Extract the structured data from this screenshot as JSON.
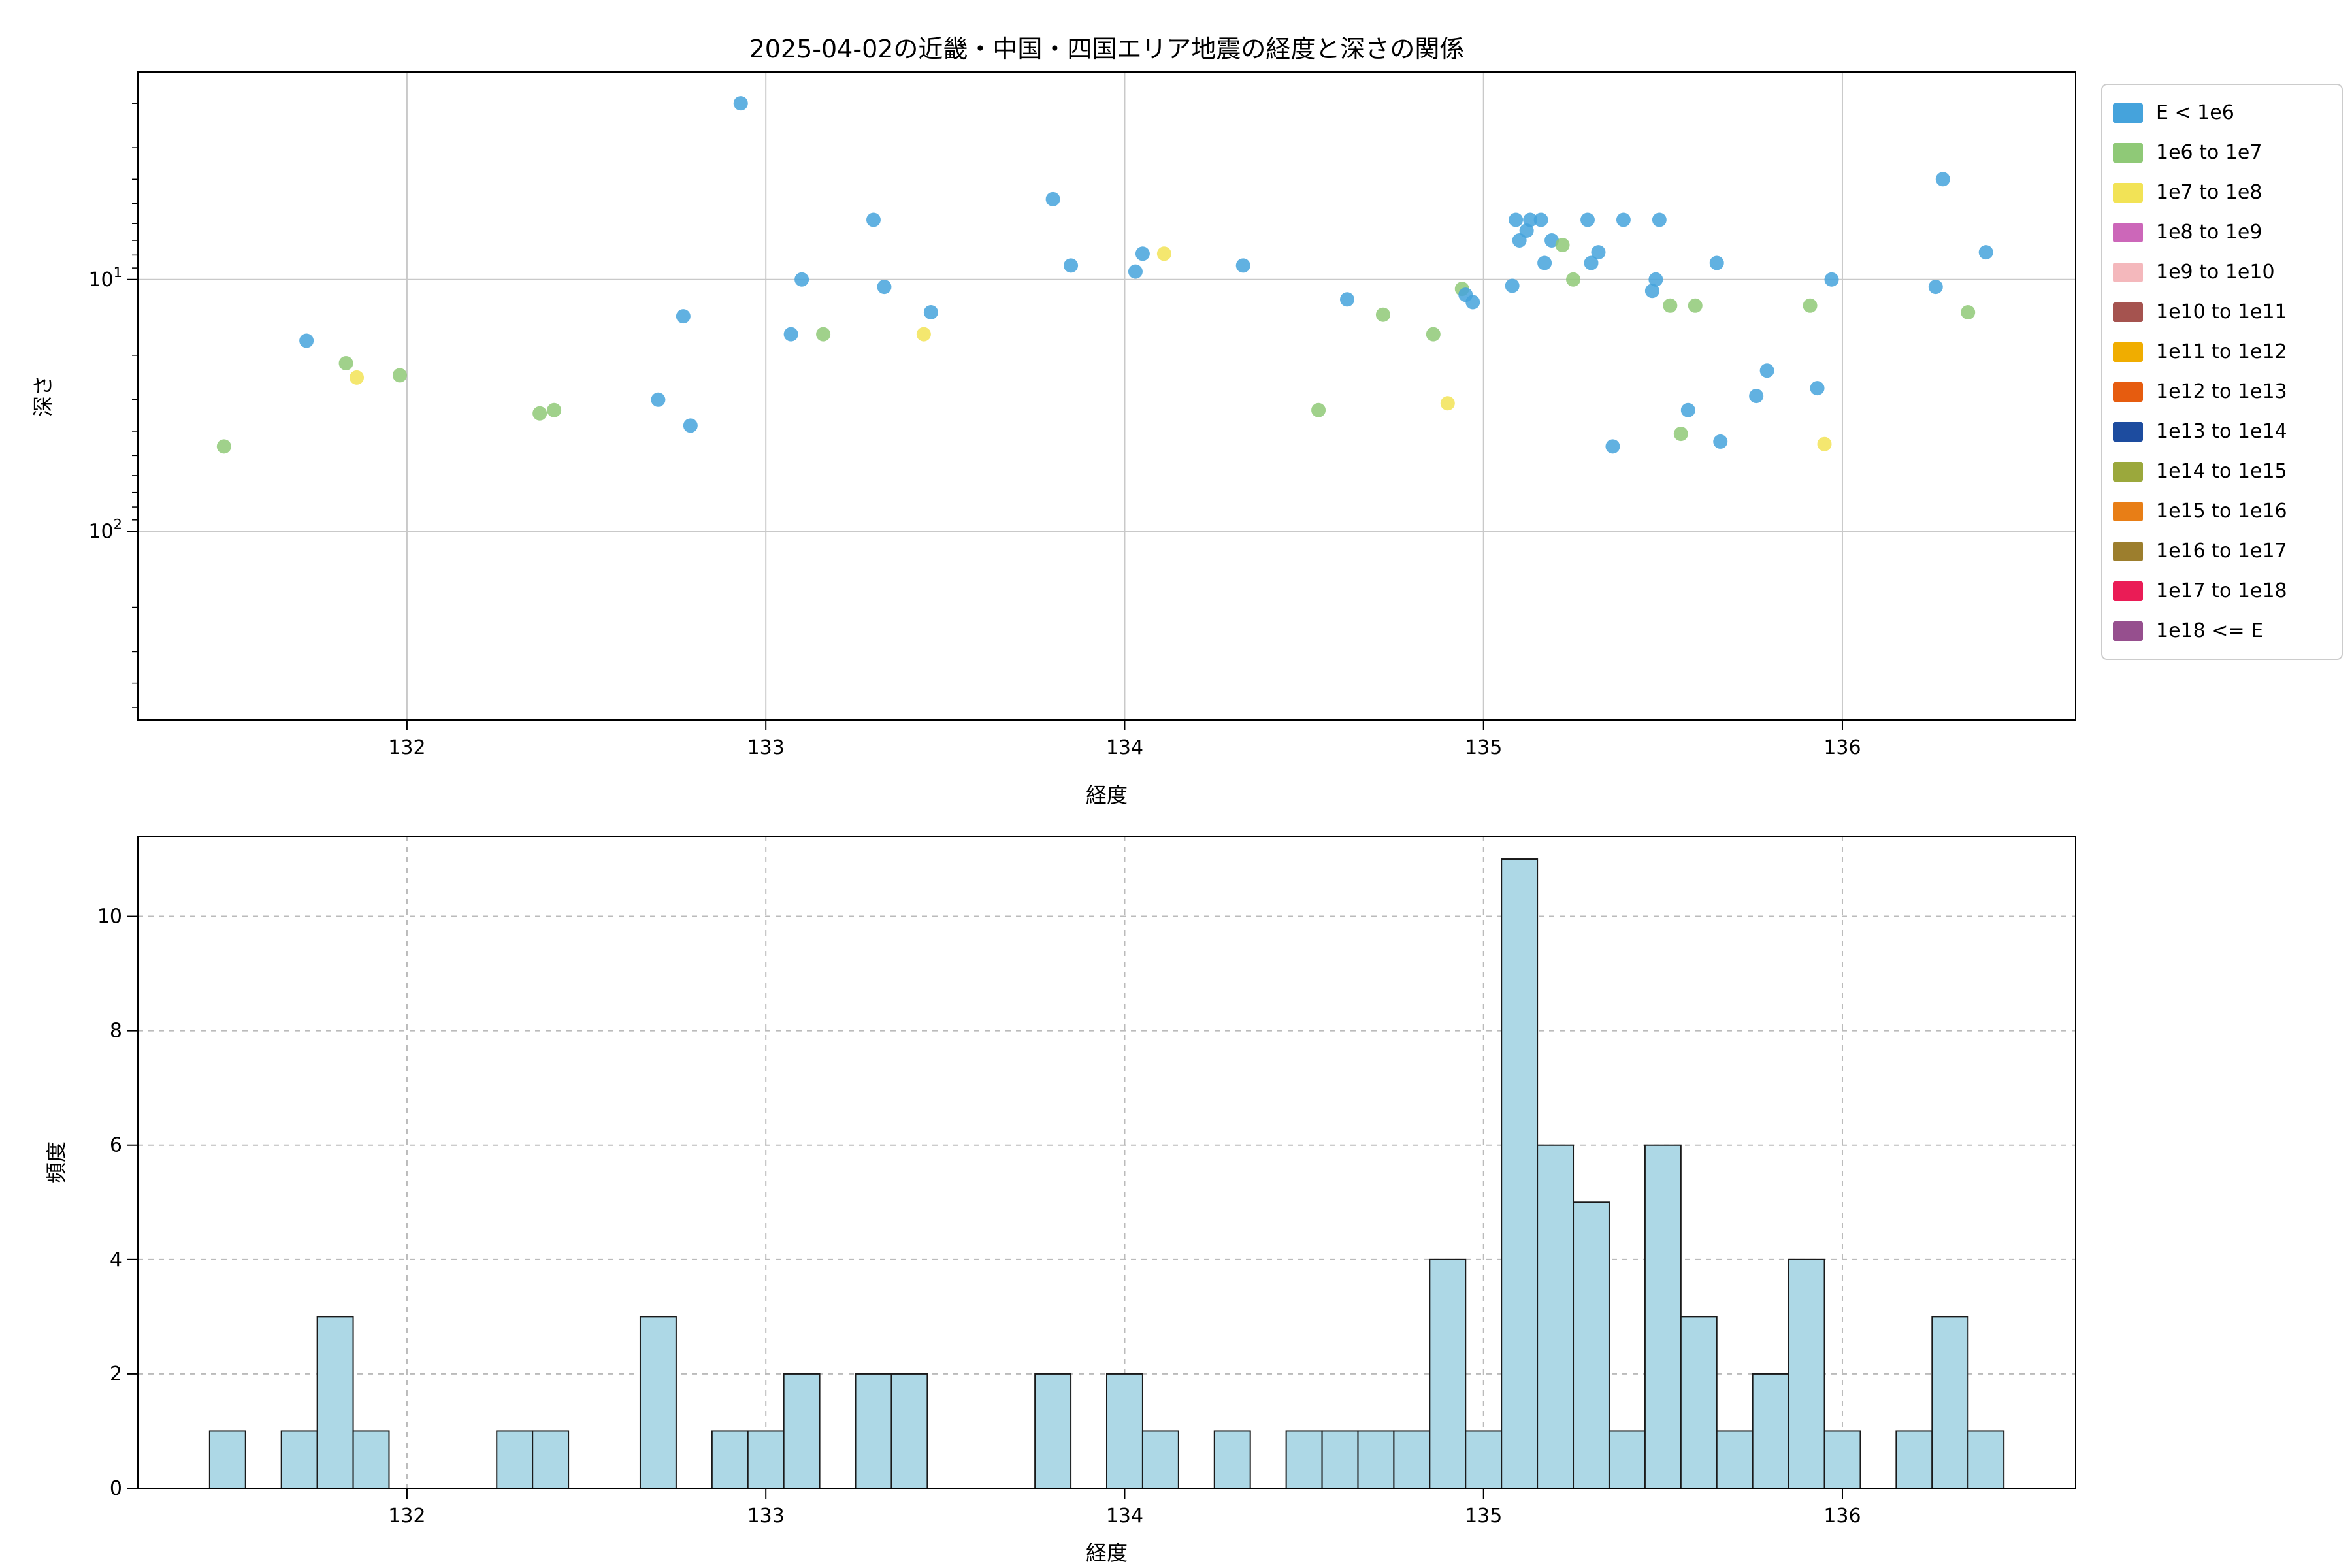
{
  "figure": {
    "title": "2025-04-02の近畿・中国・四国エリア地震の経度と深さの関係",
    "background": "#ffffff"
  },
  "legend": {
    "entries": [
      {
        "label": "E < 1e6",
        "color": "#45A3DC"
      },
      {
        "label": "1e6 to 1e7",
        "color": "#8FC977"
      },
      {
        "label": "1e7 to 1e8",
        "color": "#F2E356"
      },
      {
        "label": "1e8 to 1e9",
        "color": "#CC67B9"
      },
      {
        "label": "1e9 to 1e10",
        "color": "#F4B8BC"
      },
      {
        "label": "1e10 to 1e11",
        "color": "#A5534F"
      },
      {
        "label": "1e11 to 1e12",
        "color": "#F0AD00"
      },
      {
        "label": "1e12 to 1e13",
        "color": "#E65C0F"
      },
      {
        "label": "1e13 to 1e14",
        "color": "#1D4C9F"
      },
      {
        "label": "1e14 to 1e15",
        "color": "#9BA83C"
      },
      {
        "label": "1e15 to 1e16",
        "color": "#E87E16"
      },
      {
        "label": "1e16 to 1e17",
        "color": "#9C7E2D"
      },
      {
        "label": "1e17 to 1e18",
        "color": "#EA1C56"
      },
      {
        "label": "1e18 <= E",
        "color": "#964F8E"
      }
    ]
  },
  "chart_data": [
    {
      "type": "scatter",
      "title": "2025-04-02の近畿・中国・四国エリア地震の経度と深さの関係",
      "xlabel": "経度",
      "ylabel": "深さ",
      "xlim": [
        131.25,
        136.65
      ],
      "x_ticks": [
        132,
        133,
        134,
        135,
        136
      ],
      "yscale": "log",
      "y_inverted": true,
      "y_top": 1.5,
      "y_bottom": 560,
      "y_ticks": [
        10,
        100
      ],
      "grid": "solid",
      "points_format": [
        "longitude",
        "depth_km",
        "legend_bin_index"
      ],
      "points": [
        [
          131.49,
          46.0,
          1
        ],
        [
          131.72,
          17.5,
          0
        ],
        [
          131.83,
          21.5,
          1
        ],
        [
          131.86,
          24.5,
          2
        ],
        [
          131.98,
          24.0,
          1
        ],
        [
          132.37,
          34.0,
          1
        ],
        [
          132.41,
          33.0,
          1
        ],
        [
          132.7,
          30.0,
          0
        ],
        [
          132.77,
          14.0,
          0
        ],
        [
          132.79,
          38.0,
          0
        ],
        [
          132.93,
          2.0,
          0
        ],
        [
          133.07,
          16.5,
          0
        ],
        [
          133.1,
          10.0,
          0
        ],
        [
          133.16,
          16.5,
          1
        ],
        [
          133.3,
          5.8,
          0
        ],
        [
          133.33,
          10.7,
          0
        ],
        [
          133.44,
          16.5,
          2
        ],
        [
          133.46,
          13.5,
          0
        ],
        [
          133.8,
          4.8,
          0
        ],
        [
          133.85,
          8.8,
          0
        ],
        [
          134.03,
          9.3,
          0
        ],
        [
          134.05,
          7.9,
          0
        ],
        [
          134.11,
          7.9,
          2
        ],
        [
          134.33,
          8.8,
          0
        ],
        [
          134.54,
          33.0,
          1
        ],
        [
          134.62,
          12.0,
          0
        ],
        [
          134.72,
          13.8,
          1
        ],
        [
          134.86,
          16.5,
          1
        ],
        [
          134.9,
          31.0,
          2
        ],
        [
          134.94,
          10.9,
          1
        ],
        [
          134.95,
          11.5,
          0
        ],
        [
          134.97,
          12.3,
          0
        ],
        [
          135.08,
          10.6,
          0
        ],
        [
          135.09,
          5.8,
          0
        ],
        [
          135.1,
          7.0,
          0
        ],
        [
          135.12,
          6.4,
          0
        ],
        [
          135.13,
          5.8,
          0
        ],
        [
          135.16,
          5.8,
          0
        ],
        [
          135.17,
          8.6,
          0
        ],
        [
          135.19,
          7.0,
          0
        ],
        [
          135.22,
          7.3,
          1
        ],
        [
          135.25,
          10.0,
          1
        ],
        [
          135.29,
          5.8,
          0
        ],
        [
          135.3,
          8.6,
          0
        ],
        [
          135.32,
          7.8,
          0
        ],
        [
          135.36,
          46.0,
          0
        ],
        [
          135.39,
          5.8,
          0
        ],
        [
          135.47,
          11.1,
          0
        ],
        [
          135.48,
          10.0,
          0
        ],
        [
          135.49,
          5.8,
          0
        ],
        [
          135.52,
          12.7,
          1
        ],
        [
          135.55,
          41.0,
          1
        ],
        [
          135.57,
          33.0,
          0
        ],
        [
          135.59,
          12.7,
          1
        ],
        [
          135.65,
          8.6,
          0
        ],
        [
          135.66,
          44.0,
          0
        ],
        [
          135.76,
          29.0,
          0
        ],
        [
          135.79,
          23.0,
          0
        ],
        [
          135.91,
          12.7,
          1
        ],
        [
          135.93,
          27.0,
          0
        ],
        [
          135.95,
          45.0,
          2
        ],
        [
          135.97,
          10.0,
          0
        ],
        [
          136.26,
          10.7,
          0
        ],
        [
          136.28,
          4.0,
          0
        ],
        [
          136.35,
          13.5,
          1
        ],
        [
          136.4,
          7.8,
          0
        ]
      ]
    },
    {
      "type": "bar",
      "xlabel": "経度",
      "ylabel": "頻度",
      "xlim": [
        131.25,
        136.65
      ],
      "x_ticks": [
        132,
        133,
        134,
        135,
        136
      ],
      "ylim": [
        0,
        11.4
      ],
      "y_ticks": [
        0,
        2,
        4,
        6,
        8,
        10
      ],
      "grid": "dashed",
      "bar_color": "#ADD8E6",
      "bar_edge_color": "#1a1a1a",
      "bin_start": 131.45,
      "bin_width": 0.1,
      "counts": [
        1,
        0,
        1,
        3,
        1,
        0,
        0,
        0,
        1,
        1,
        0,
        0,
        3,
        0,
        1,
        1,
        2,
        0,
        2,
        2,
        0,
        0,
        0,
        2,
        0,
        2,
        1,
        0,
        1,
        0,
        1,
        1,
        1,
        1,
        4,
        1,
        11,
        6,
        5,
        1,
        6,
        3,
        1,
        2,
        4,
        1,
        0,
        1,
        3,
        1
      ]
    }
  ]
}
